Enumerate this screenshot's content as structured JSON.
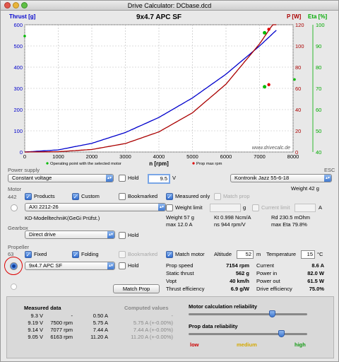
{
  "window": {
    "title": "Drive Calculator: DCbase.dcd"
  },
  "colors": {
    "thrust": "#0000cc",
    "power": "#aa0000",
    "eta": "#00aa00",
    "background": "#e8e8e8"
  },
  "chart_data": {
    "type": "line",
    "title": "9x4.7 APC SF",
    "xlabel": "n [rpm]",
    "xlim": [
      0,
      8000
    ],
    "x_ticks": [
      "0",
      "1000",
      "2000",
      "3000",
      "4000",
      "5000",
      "6000",
      "7000",
      "8000"
    ],
    "left_axis": {
      "label": "Thrust [g]",
      "ylim": [
        0,
        600
      ],
      "ticks": [
        "0",
        "100",
        "200",
        "300",
        "400",
        "500",
        "600"
      ]
    },
    "right_axis_power": {
      "label": "P [W]",
      "ylim": [
        0,
        120
      ],
      "ticks": [
        "0",
        "20",
        "40",
        "60",
        "80",
        "100",
        "120"
      ]
    },
    "right_axis_eta": {
      "label": "Eta [%]",
      "ylim": [
        40,
        100
      ],
      "ticks": [
        "40",
        "50",
        "60",
        "70",
        "80",
        "90",
        "100"
      ]
    },
    "series": [
      {
        "name": "Thrust",
        "axis": "left",
        "x": [
          0,
          1000,
          2000,
          3000,
          4000,
          5000,
          6000,
          7000,
          7500
        ],
        "y": [
          0,
          10,
          41,
          92,
          163,
          255,
          367,
          500,
          574
        ]
      },
      {
        "name": "Power",
        "axis": "power",
        "x": [
          0,
          1000,
          2000,
          3000,
          4000,
          5000,
          6000,
          7000,
          7500
        ],
        "y": [
          0,
          0.3,
          2.4,
          8,
          19,
          37,
          64,
          102,
          125
        ]
      }
    ],
    "operating_point": {
      "x": 7150,
      "thrust": 562,
      "power": 61.5
    },
    "legend": [
      "Operating point with the selected motor",
      "Prop max rpm"
    ],
    "watermark": "www.drivecalc.de"
  },
  "power_supply": {
    "section": "Power supply",
    "type": "Constant voltage",
    "hold": "Hold",
    "voltage": "9.5",
    "unit": "V",
    "esc_section": "ESC",
    "esc": "Kontronik Jazz 55-6-18",
    "esc_weight": "Weight 42 g"
  },
  "motor": {
    "section": "Motor",
    "count": "442",
    "products": "Products",
    "custom": "Custom",
    "bookmarked": "Bookmarked",
    "measured_only": "Measured only",
    "match_prop": "Match prop",
    "name": "AXI 2212-26",
    "manufacturer": "KD-ModelltechniK(GeGi Prüfst.)",
    "weight_limit": "Weight limit",
    "weight_unit": "g",
    "current_limit": "Current limit",
    "current_unit": "A",
    "weight": "Weight 57 g",
    "max": "max 12.0 A",
    "kt": "Kt 0.998 Ncm/A",
    "ns": "ns 944 rpm/V",
    "rd": "Rd 230.5 mOhm",
    "max_eta": "max Eta 79.8%"
  },
  "gearbox": {
    "section": "Gearbox",
    "type": "Direct drive",
    "hold": "Hold"
  },
  "propeller": {
    "section": "Propeller",
    "count": "63",
    "fixed": "Fixed",
    "folding": "Folding",
    "bookmarked": "Bookmarked",
    "name": "9x4.7 APC SF",
    "hold": "Hold",
    "match_prop": "Match Prop",
    "match_motor": "Match motor",
    "altitude_label": "Altitude",
    "altitude": "52",
    "altitude_unit": "m",
    "temperature_label": "Temperature",
    "temperature": "15",
    "temperature_unit": "°C"
  },
  "results": [
    {
      "label": "Prop speed",
      "value": "7154 rpm",
      "label2": "Current",
      "value2": "8.6 A"
    },
    {
      "label": "Static thrust",
      "value": "562 g",
      "label2": "Power in",
      "value2": "82.0 W"
    },
    {
      "label": "Vopt",
      "value": "40 km/h",
      "label2": "Power out",
      "value2": "61.5 W"
    },
    {
      "label": "Thrust efficiency",
      "value": "6.9 g/W",
      "label2": "Drive efficiency",
      "value2": "75.0%"
    }
  ],
  "measured": {
    "title": "Measured data",
    "computed_title": "Computed values",
    "rows": [
      {
        "v": "9.3 V",
        "rpm": "-",
        "a": "0.50 A",
        "comp": "-"
      },
      {
        "v": "9.19 V",
        "rpm": "7500 rpm",
        "a": "5.75 A",
        "comp": "5.75 A (+-0.00%)"
      },
      {
        "v": "9.14 V",
        "rpm": "7077 rpm",
        "a": "7.44 A",
        "comp": "7.44 A (+-0.00%)"
      },
      {
        "v": "9.05 V",
        "rpm": "6163 rpm",
        "a": "11.20 A",
        "comp": "11.20 A (+-0.00%)"
      }
    ]
  },
  "reliability": {
    "motor_title": "Motor calculation reliability",
    "prop_title": "Prop data reliability",
    "low": "low",
    "medium": "medium",
    "high": "high",
    "motor_level": 0.7,
    "prop_level": 0.78
  }
}
